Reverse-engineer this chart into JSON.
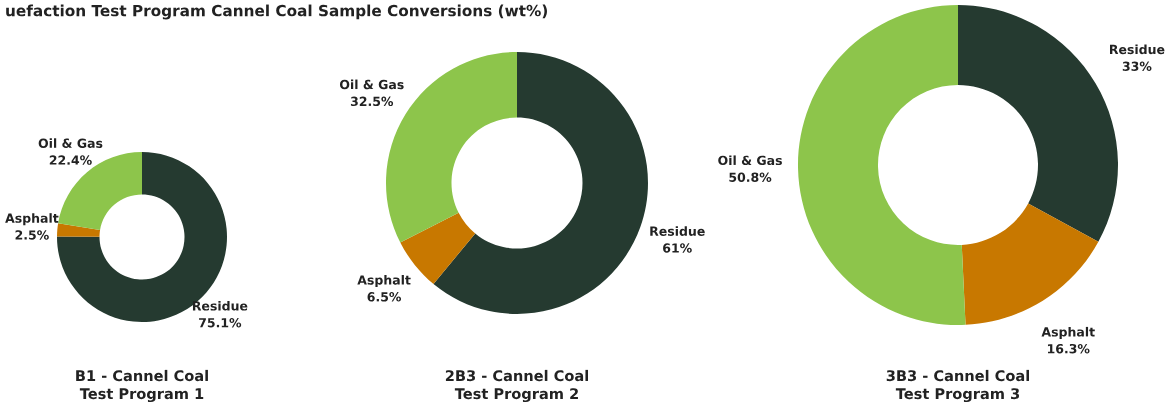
{
  "chart_data": [
    {
      "type": "donut",
      "title": "B1 - Cannel Coal\nTest Program 1",
      "annotations": [
        "uefaction Test Program Cannel Coal Sample Conversions (wt%)"
      ],
      "categories": [
        "Residue",
        "Asphalt",
        "Oil & Gas"
      ],
      "values": [
        75.1,
        2.5,
        22.4
      ],
      "value_labels": [
        "75.1%",
        "2.5%",
        "22.4%"
      ],
      "colors": [
        "#253a30",
        "#c87800",
        "#8dc54b"
      ]
    },
    {
      "type": "donut",
      "title": "2B3 - Cannel Coal\nTest Program 2",
      "categories": [
        "Residue",
        "Asphalt",
        "Oil & Gas"
      ],
      "values": [
        61,
        6.5,
        32.5
      ],
      "value_labels": [
        "61%",
        "6.5%",
        "32.5%"
      ],
      "colors": [
        "#253a30",
        "#c87800",
        "#8dc54b"
      ]
    },
    {
      "type": "donut",
      "title": "3B3 - Cannel Coal\nTest Program 3",
      "categories": [
        "Residue",
        "Asphalt",
        "Oil & Gas"
      ],
      "values": [
        33,
        16.3,
        50.8
      ],
      "value_labels": [
        "33%",
        "16.3%",
        "50.8%"
      ],
      "colors": [
        "#253a30",
        "#c87800",
        "#8dc54b"
      ]
    }
  ]
}
